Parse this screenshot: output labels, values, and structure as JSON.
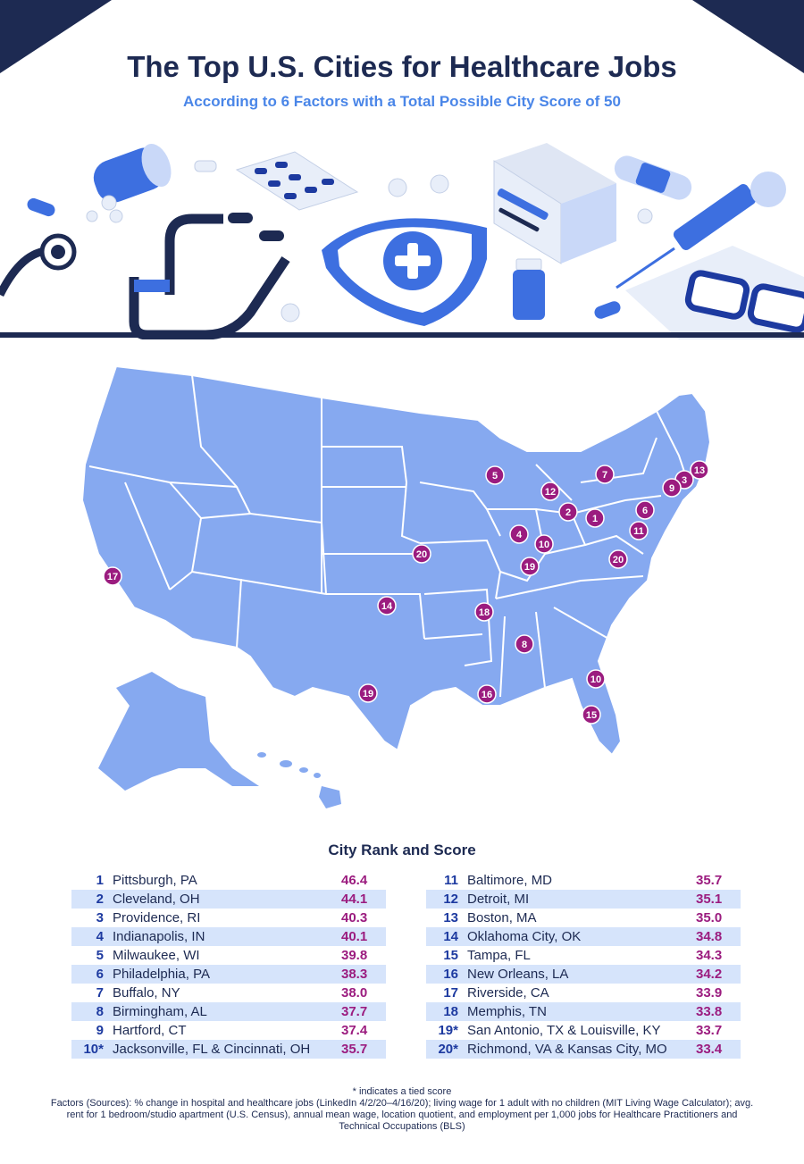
{
  "header": {
    "title": "The Top U.S. Cities for Healthcare Jobs",
    "subtitle": "According to 6 Factors with a Total Possible City Score of 50"
  },
  "colors": {
    "navy": "#1d2a52",
    "accent_blue": "#4a86e8",
    "map_fill": "#86a9f0",
    "pin": "#9b1c7f",
    "row_stripe": "#d6e4fb"
  },
  "illustration": {
    "icons": [
      "pill-bottle-icon",
      "stethoscope-icon",
      "pill-blister-icon",
      "shield-cross-icon",
      "medicine-box-icon",
      "vial-icon",
      "bandage-icon",
      "syringe-icon",
      "glasses-icon"
    ]
  },
  "map": {
    "pins": [
      {
        "label": "1"
      },
      {
        "label": "2"
      },
      {
        "label": "3"
      },
      {
        "label": "4"
      },
      {
        "label": "5"
      },
      {
        "label": "6"
      },
      {
        "label": "7"
      },
      {
        "label": "8"
      },
      {
        "label": "9"
      },
      {
        "label": "10"
      },
      {
        "label": "10"
      },
      {
        "label": "11"
      },
      {
        "label": "12"
      },
      {
        "label": "13"
      },
      {
        "label": "14"
      },
      {
        "label": "15"
      },
      {
        "label": "16"
      },
      {
        "label": "17"
      },
      {
        "label": "18"
      },
      {
        "label": "19"
      },
      {
        "label": "19"
      },
      {
        "label": "20"
      },
      {
        "label": "20"
      }
    ]
  },
  "table": {
    "title": "City Rank and Score",
    "left": [
      {
        "rank": "1",
        "city": "Pittsburgh, PA",
        "score": "46.4"
      },
      {
        "rank": "2",
        "city": "Cleveland, OH",
        "score": "44.1"
      },
      {
        "rank": "3",
        "city": "Providence, RI",
        "score": "40.3"
      },
      {
        "rank": "4",
        "city": "Indianapolis, IN",
        "score": "40.1"
      },
      {
        "rank": "5",
        "city": "Milwaukee, WI",
        "score": "39.8"
      },
      {
        "rank": "6",
        "city": "Philadelphia, PA",
        "score": "38.3"
      },
      {
        "rank": "7",
        "city": "Buffalo, NY",
        "score": "38.0"
      },
      {
        "rank": "8",
        "city": "Birmingham, AL",
        "score": "37.7"
      },
      {
        "rank": "9",
        "city": "Hartford, CT",
        "score": "37.4"
      },
      {
        "rank": "10*",
        "city": "Jacksonville, FL & Cincinnati, OH",
        "score": "35.7"
      }
    ],
    "right": [
      {
        "rank": "11",
        "city": "Baltimore, MD",
        "score": "35.7"
      },
      {
        "rank": "12",
        "city": "Detroit, MI",
        "score": "35.1"
      },
      {
        "rank": "13",
        "city": "Boston, MA",
        "score": "35.0"
      },
      {
        "rank": "14",
        "city": "Oklahoma City, OK",
        "score": "34.8"
      },
      {
        "rank": "15",
        "city": "Tampa, FL",
        "score": "34.3"
      },
      {
        "rank": "16",
        "city": "New Orleans, LA",
        "score": "34.2"
      },
      {
        "rank": "17",
        "city": "Riverside, CA",
        "score": "33.9"
      },
      {
        "rank": "18",
        "city": "Memphis, TN",
        "score": "33.8"
      },
      {
        "rank": "19*",
        "city": "San Antonio, TX & Louisville, KY",
        "score": "33.7"
      },
      {
        "rank": "20*",
        "city": "Richmond, VA & Kansas City, MO",
        "score": "33.4"
      }
    ]
  },
  "footer": {
    "tie_note": "* indicates a tied score",
    "sources": "Factors (Sources): % change in hospital and healthcare jobs (LinkedIn 4/2/20–4/16/20); living wage for 1 adult with no children (MIT Living Wage Calculator); avg. rent for 1 bedroom/studio apartment (U.S. Census), annual mean wage, location quotient, and employment per 1,000 jobs for Healthcare Practitioners and Technical Occupations (BLS)"
  }
}
